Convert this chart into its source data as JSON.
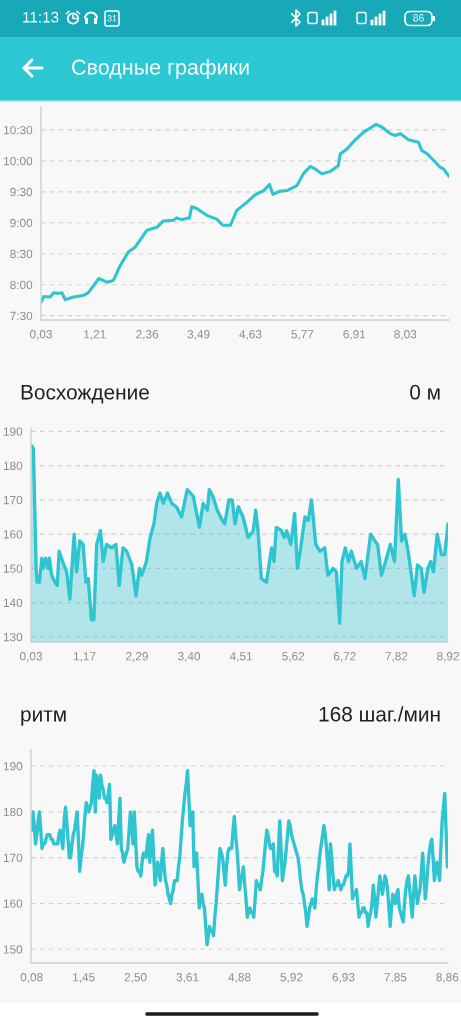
{
  "chart_data": [
    {
      "type": "other",
      "title": "Сводные графики",
      "annotations": [
        "11:13",
        "31",
        "86"
      ]
    },
    {
      "type": "line",
      "grid": "y",
      "xlim": [
        0.03,
        8.99
      ],
      "ylim": [
        7.43,
        10.87
      ],
      "xticks": [
        {
          "value": 0.03,
          "label": "0,03"
        },
        {
          "value": 1.21,
          "label": "1,21"
        },
        {
          "value": 2.36,
          "label": "2,36"
        },
        {
          "value": 3.49,
          "label": "3,49"
        },
        {
          "value": 4.63,
          "label": "4,63"
        },
        {
          "value": 5.77,
          "label": "5,77"
        },
        {
          "value": 6.91,
          "label": "6,91"
        },
        {
          "value": 8.03,
          "label": "8,03"
        }
      ],
      "yticks": [
        {
          "value": 7.5,
          "label": "7:30"
        },
        {
          "value": 8,
          "label": "8:00"
        },
        {
          "value": 8.5,
          "label": "8:30"
        },
        {
          "value": 9,
          "label": "9:00"
        },
        {
          "value": 9.5,
          "label": "9:30"
        },
        {
          "value": 10,
          "label": "10:00"
        },
        {
          "value": 10.5,
          "label": "10:30"
        }
      ],
      "series": [
        {
          "color": "#2ec4d0",
          "x": [
            0.03,
            0.09,
            0.23,
            0.31,
            0.42,
            0.49,
            0.56,
            0.75,
            0.97,
            1.08,
            1.3,
            1.48,
            1.62,
            1.77,
            1.95,
            2.1,
            2.36,
            2.58,
            2.72,
            2.94,
            3.01,
            3.12,
            3.29,
            3.34,
            3.45,
            3.67,
            3.89,
            4.02,
            4.19,
            4.33,
            4.55,
            4.73,
            4.92,
            5.05,
            5.12,
            5.28,
            5.43,
            5.65,
            5.79,
            5.94,
            6.05,
            6.2,
            6.38,
            6.56,
            6.6,
            6.75,
            6.93,
            7.11,
            7.26,
            7.39,
            7.51,
            7.7,
            7.81,
            7.92,
            8.1,
            8.32,
            8.39,
            8.5,
            8.65,
            8.79,
            8.87,
            8.99
          ],
          "values": [
            7.72,
            7.81,
            7.8,
            7.87,
            7.86,
            7.87,
            7.76,
            7.8,
            7.83,
            7.88,
            8.1,
            8.04,
            8.07,
            8.31,
            8.53,
            8.61,
            8.88,
            8.93,
            9.03,
            9.04,
            9.08,
            9.05,
            9.08,
            9.26,
            9.23,
            9.12,
            9.06,
            8.96,
            8.96,
            9.2,
            9.33,
            9.45,
            9.52,
            9.62,
            9.46,
            9.51,
            9.52,
            9.6,
            9.79,
            9.91,
            9.87,
            9.79,
            9.83,
            9.92,
            10.11,
            10.19,
            10.34,
            10.46,
            10.53,
            10.59,
            10.55,
            10.44,
            10.41,
            10.44,
            10.34,
            10.3,
            10.17,
            10.12,
            10.01,
            9.9,
            9.87,
            9.75
          ]
        }
      ]
    },
    {
      "type": "area",
      "title": "Восхождение",
      "annotations": [
        "0 м"
      ],
      "grid": "y",
      "xlim": [
        0.03,
        8.92
      ],
      "ylim": [
        128.5,
        191
      ],
      "xticks": [
        {
          "value": 0.03,
          "label": "0,03"
        },
        {
          "value": 1.17,
          "label": "1,17"
        },
        {
          "value": 2.29,
          "label": "2,29"
        },
        {
          "value": 3.4,
          "label": "3,40"
        },
        {
          "value": 4.51,
          "label": "4,51"
        },
        {
          "value": 5.62,
          "label": "5,62"
        },
        {
          "value": 6.72,
          "label": "6,72"
        },
        {
          "value": 7.82,
          "label": "7,82"
        },
        {
          "value": 8.92,
          "label": "8,92"
        }
      ],
      "yticks": [
        130,
        140,
        150,
        160,
        170,
        180,
        190
      ],
      "series": [
        {
          "color": "#2ec4d0",
          "x": [
            0.03,
            0.08,
            0.14,
            0.16,
            0.21,
            0.26,
            0.29,
            0.34,
            0.39,
            0.42,
            0.47,
            0.54,
            0.59,
            0.63,
            0.73,
            0.79,
            0.86,
            0.95,
            1.0,
            1.07,
            1.14,
            1.2,
            1.25,
            1.32,
            1.37,
            1.43,
            1.51,
            1.57,
            1.64,
            1.75,
            1.84,
            1.91,
            1.99,
            2.07,
            2.18,
            2.27,
            2.34,
            2.39,
            2.49,
            2.57,
            2.65,
            2.71,
            2.78,
            2.85,
            2.94,
            3.03,
            3.13,
            3.24,
            3.36,
            3.49,
            3.62,
            3.7,
            3.79,
            3.83,
            3.91,
            4.0,
            4.11,
            4.16,
            4.25,
            4.32,
            4.38,
            4.45,
            4.55,
            4.66,
            4.77,
            4.82,
            4.87,
            4.94,
            5.05,
            5.16,
            5.21,
            5.26,
            5.37,
            5.43,
            5.48,
            5.57,
            5.65,
            5.71,
            5.78,
            5.87,
            5.94,
            6.01,
            6.1,
            6.19,
            6.29,
            6.36,
            6.47,
            6.54,
            6.61,
            6.66,
            6.73,
            6.8,
            6.86,
            6.97,
            7.07,
            7.15,
            7.27,
            7.36,
            7.42,
            7.5,
            7.59,
            7.69,
            7.78,
            7.86,
            7.93,
            8.0,
            8.07,
            8.2,
            8.27,
            8.35,
            8.41,
            8.49,
            8.55,
            8.61,
            8.69,
            8.78,
            8.85,
            8.92
          ],
          "values": [
            186,
            185,
            150,
            146,
            146,
            153,
            150,
            153,
            150,
            153,
            148,
            146,
            145,
            155,
            151,
            149,
            141,
            160,
            149,
            158,
            157,
            146,
            147,
            135,
            135,
            157,
            161,
            152,
            157,
            156,
            157,
            145,
            156,
            155,
            151,
            142,
            150,
            148,
            152,
            159,
            163,
            169,
            172,
            169,
            172,
            169,
            168,
            165,
            173,
            171,
            162,
            169,
            167,
            173,
            171,
            167,
            164,
            163,
            170,
            170,
            163,
            168,
            165,
            159,
            161,
            167,
            161,
            147,
            146,
            156,
            152,
            162,
            161,
            159,
            161,
            157,
            166,
            150,
            156,
            165,
            164,
            170,
            157,
            155,
            156,
            148,
            150,
            149,
            134,
            152,
            156,
            152,
            155,
            150,
            152,
            147,
            160,
            158,
            157,
            148,
            152,
            157,
            152,
            176,
            158,
            160,
            155,
            142,
            151,
            150,
            143,
            150,
            152,
            149,
            160,
            154,
            154,
            163
          ]
        }
      ]
    },
    {
      "type": "line",
      "title": "ритм",
      "annotations": [
        "168 шаг./мин"
      ],
      "grid": "y",
      "ylim": [
        147,
        193.5
      ],
      "categories": [
        "0,08",
        null,
        null,
        null,
        null,
        null,
        null,
        null,
        null,
        null,
        null,
        null,
        null,
        null,
        null,
        null,
        null,
        null,
        null,
        null,
        null,
        null,
        null,
        null,
        null,
        null,
        null,
        null,
        null,
        null,
        null,
        null,
        null,
        null,
        null,
        null,
        null,
        null,
        null,
        null,
        "1,45",
        null,
        null,
        null,
        null,
        null,
        null,
        null,
        null,
        null,
        null,
        null,
        null,
        null,
        null,
        null,
        null,
        null,
        null,
        null,
        null,
        null,
        null,
        null,
        null,
        null,
        null,
        null,
        null,
        null,
        null,
        null,
        null,
        null,
        null,
        null,
        null,
        null,
        null,
        null,
        "2,50",
        null,
        null,
        null,
        null,
        null,
        null,
        null,
        null,
        null,
        null,
        null,
        null,
        null,
        null,
        null,
        null,
        null,
        null,
        null,
        null,
        null,
        null,
        null,
        null,
        null,
        null,
        null,
        null,
        null,
        null,
        null,
        null,
        null,
        null,
        null,
        null,
        null,
        null,
        null,
        "3,61",
        null,
        null,
        null,
        null,
        null,
        null,
        null,
        null,
        null,
        null,
        null,
        null,
        null,
        null,
        null,
        null,
        null,
        null,
        null,
        null,
        null,
        null,
        null,
        null,
        null,
        null,
        null,
        null,
        null,
        null,
        null,
        null,
        null,
        null,
        null,
        null,
        null,
        null,
        null,
        "4,88",
        null,
        null,
        null,
        null,
        null,
        null,
        null,
        null,
        null,
        null,
        null,
        null,
        null,
        null,
        null,
        null,
        null,
        null,
        null,
        null,
        null,
        null,
        null,
        null,
        null,
        null,
        null,
        null,
        null,
        null,
        null,
        null,
        null,
        null,
        null,
        null,
        null,
        null,
        null,
        "5,92",
        null,
        null,
        null,
        null,
        null,
        null,
        null,
        null,
        null,
        null,
        null,
        null,
        null,
        null,
        null,
        null,
        null,
        null,
        null,
        null,
        null,
        null,
        null,
        null,
        null,
        null,
        null,
        null,
        null,
        null,
        null,
        null,
        null,
        null,
        null,
        null,
        null,
        null,
        null,
        "6,93",
        null,
        null,
        null,
        null,
        null,
        null,
        null,
        null,
        null,
        null,
        null,
        null,
        null,
        null,
        null,
        null,
        null,
        null,
        null,
        null,
        null,
        null,
        null,
        null,
        null,
        null,
        null,
        null,
        null,
        null,
        null,
        null,
        null,
        null,
        null,
        null,
        null,
        null,
        null,
        "7,85",
        null,
        null,
        null,
        null,
        null,
        null,
        null,
        null,
        null,
        null,
        null,
        null,
        null,
        null,
        null,
        null,
        null,
        null,
        null,
        null,
        null,
        null,
        null,
        null,
        null,
        null,
        null,
        null,
        null,
        null,
        null,
        null,
        null,
        null,
        null,
        null,
        null,
        null,
        null,
        "8,86"
      ],
      "yticks": [
        150,
        160,
        170,
        180,
        190
      ],
      "series": [
        {
          "color": "#2ec4d0",
          "values": [
            176,
            180,
            177,
            173,
            175,
            178,
            180,
            176,
            172,
            173,
            173,
            174,
            175,
            175,
            175,
            174,
            174,
            173,
            173,
            173,
            173,
            175,
            176,
            174,
            172,
            178,
            181,
            178,
            174,
            170,
            170,
            173,
            175,
            176,
            178,
            180,
            174,
            167,
            170,
            172,
            175,
            179,
            182,
            181,
            180,
            181,
            182,
            186,
            189,
            180,
            188,
            186,
            183,
            188,
            186,
            185,
            183,
            183,
            182,
            184,
            186,
            174,
            175,
            176,
            177,
            175,
            173,
            178,
            183,
            172,
            171,
            169,
            170,
            171,
            172,
            176,
            180,
            177,
            173,
            180,
            174,
            168,
            167,
            167,
            166,
            169,
            171,
            171,
            170,
            173,
            175,
            169,
            173,
            176,
            170,
            164,
            167,
            169,
            167,
            165,
            169,
            172,
            168,
            165,
            164,
            162,
            161,
            160,
            162,
            163,
            165,
            165,
            165,
            168,
            170,
            174,
            178,
            181,
            184,
            186,
            189,
            183,
            177,
            179,
            180,
            168,
            170,
            171,
            165,
            159,
            161,
            162,
            160,
            159,
            155,
            151,
            153,
            155,
            154,
            154,
            153,
            157,
            160,
            164,
            168,
            172,
            171,
            170,
            167,
            164,
            168,
            171,
            172,
            172,
            172,
            176,
            179,
            175,
            172,
            168,
            163,
            165,
            166,
            168,
            164,
            161,
            157,
            158,
            159,
            158,
            158,
            157,
            161,
            165,
            164,
            164,
            163,
            165,
            167,
            170,
            173,
            176,
            175,
            173,
            172,
            172,
            173,
            167,
            167,
            166,
            172,
            178,
            172,
            165,
            167,
            169,
            172,
            175,
            178,
            177,
            175,
            174,
            173,
            172,
            171,
            170,
            168,
            165,
            163,
            162,
            160,
            158,
            155,
            157,
            159,
            160,
            161,
            160,
            159,
            163,
            166,
            168,
            171,
            173,
            175,
            177,
            175,
            172,
            168,
            163,
            173,
            170,
            166,
            163,
            164,
            164,
            165,
            164,
            163,
            164,
            164,
            165,
            166,
            166,
            167,
            173,
            167,
            161,
            162,
            162,
            163,
            160,
            157,
            158,
            158,
            159,
            159,
            158,
            158,
            155,
            157,
            158,
            160,
            164,
            161,
            157,
            160,
            163,
            166,
            164,
            162,
            164,
            166,
            165,
            163,
            159,
            155,
            159,
            162,
            161,
            160,
            162,
            163,
            159,
            158,
            157,
            156,
            160,
            163,
            165,
            166,
            163,
            160,
            157,
            162,
            166,
            163,
            160,
            162,
            163,
            167,
            171,
            166,
            161,
            164,
            168,
            171,
            173,
            174,
            170,
            165,
            167,
            169,
            167,
            165,
            172,
            178,
            181,
            184,
            176,
            168
          ]
        }
      ]
    }
  ]
}
